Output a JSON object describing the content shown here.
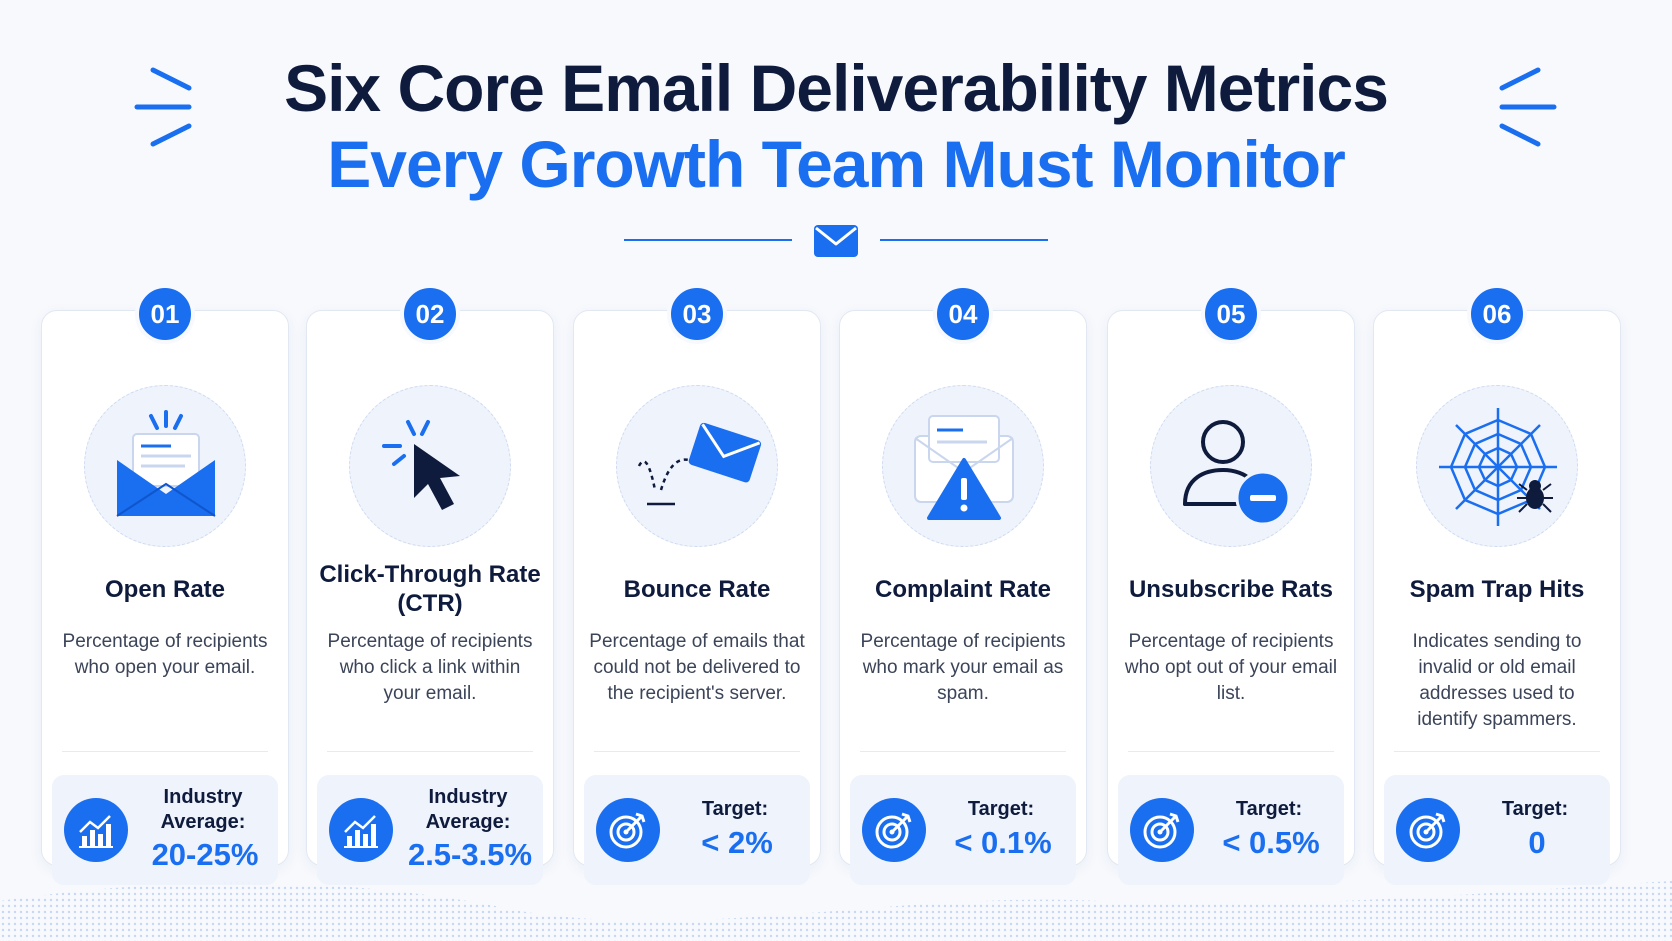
{
  "header": {
    "title_line1": "Six Core Email Deliverability Metrics",
    "title_line2": "Every Growth Team Must Monitor"
  },
  "colors": {
    "accent": "#1a6ef0",
    "dark": "#0f1b3d",
    "panel": "#eef3fc"
  },
  "metrics": [
    {
      "number": "01",
      "icon": "open-envelope-icon",
      "name": "Open Rate",
      "description": "Percentage of recipients who open your email.",
      "stat_icon": "bar-chart-icon",
      "stat_label": "Industry Average:",
      "stat_value": "20-25%"
    },
    {
      "number": "02",
      "icon": "cursor-click-icon",
      "name": "Click-Through Rate (CTR)",
      "description": "Percentage of recipients who click a link within your email.",
      "stat_icon": "bar-chart-icon",
      "stat_label": "Industry Average:",
      "stat_value": "2.5-3.5%"
    },
    {
      "number": "03",
      "icon": "bouncing-envelope-icon",
      "name": "Bounce Rate",
      "description": "Percentage of emails that could not be delivered to the recipient's server.",
      "stat_icon": "target-icon",
      "stat_label": "Target:",
      "stat_value": "< 2%"
    },
    {
      "number": "04",
      "icon": "envelope-warning-icon",
      "name": "Complaint Rate",
      "description": "Percentage of recipients who mark your email as spam.",
      "stat_icon": "target-icon",
      "stat_label": "Target:",
      "stat_value": "< 0.1%"
    },
    {
      "number": "05",
      "icon": "user-remove-icon",
      "name": "Unsubscribe Rats",
      "description": "Percentage of recipients who opt out of your email list.",
      "stat_icon": "target-icon",
      "stat_label": "Target:",
      "stat_value": "< 0.5%"
    },
    {
      "number": "06",
      "icon": "spider-web-icon",
      "name": "Spam Trap Hits",
      "description": "Indicates sending to invalid or old email addresses used to identify spammers.",
      "stat_icon": "target-icon",
      "stat_label": "Target:",
      "stat_value": "0"
    }
  ]
}
